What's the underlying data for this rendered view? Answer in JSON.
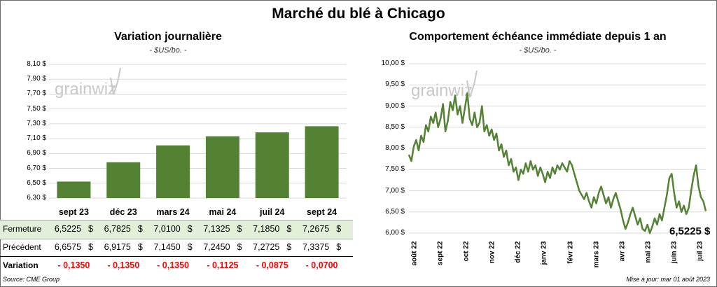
{
  "title": "Marché du blé à Chicago",
  "left_panel": {
    "title": "Variation journalière",
    "subtitle": "- $US/bo. -",
    "watermark": "grainwiz"
  },
  "right_panel": {
    "title": "Comportement échéance immédiate depuis 1 an",
    "subtitle": "- $US/bo. -",
    "watermark": "grainwiz",
    "last_value_label": "6,5225 $"
  },
  "table": {
    "rows": [
      {
        "label": "Fermeture",
        "values": [
          "6,5225",
          "6,7825",
          "7,0100",
          "7,1325",
          "7,1850",
          "7,2675"
        ],
        "unit": "$"
      },
      {
        "label": "Précédent",
        "values": [
          "6,6575",
          "6,9175",
          "7,1450",
          "7,2450",
          "7,2725",
          "7,3375"
        ],
        "unit": "$"
      },
      {
        "label": "Variation",
        "values": [
          "- 0,1350",
          "- 0,1350",
          "- 0,1350",
          "- 0,1125",
          "- 0,0875",
          "- 0,0700"
        ]
      }
    ]
  },
  "footer": {
    "source": "Source: CME Group",
    "updated": "Mise à jour: mar 01 août 2023"
  },
  "colors": {
    "bar": "#548235",
    "line": "#548235",
    "table_highlight": "#e2efd9",
    "negative": "#ff0000",
    "grid": "#d9d9d9"
  },
  "chart_data": [
    {
      "type": "bar",
      "title": "Variation journalière",
      "ylabel": "$US/bo.",
      "categories": [
        "sept 23",
        "déc 23",
        "mars 24",
        "mai 24",
        "juil 24",
        "sept 24"
      ],
      "values": [
        6.5225,
        6.7825,
        7.01,
        7.1325,
        7.185,
        7.2675
      ],
      "ylim": [
        6.3,
        8.1
      ],
      "yticks": [
        "8,10 $",
        "7,90 $",
        "7,70 $",
        "7,50 $",
        "7,30 $",
        "7,10 $",
        "6,90 $",
        "6,70 $",
        "6,50 $",
        "6,30 $"
      ],
      "grid": true
    },
    {
      "type": "line",
      "title": "Comportement échéance immédiate depuis 1 an",
      "ylabel": "$US/bo.",
      "ylim": [
        6.0,
        10.0
      ],
      "yticks": [
        "10,00 $",
        "9,50 $",
        "9,00 $",
        "8,50 $",
        "8,00 $",
        "7,50 $",
        "7,00 $",
        "6,50 $",
        "6,00 $"
      ],
      "xticks": [
        "août 22",
        "sept 22",
        "oct 22",
        "nov 22",
        "déc 22",
        "janv 23",
        "févr 23",
        "mars 23",
        "avr 23",
        "mai 23",
        "juin 23",
        "juil 23"
      ],
      "values": [
        7.85,
        7.7,
        8.05,
        8.2,
        7.95,
        8.3,
        8.15,
        8.55,
        8.4,
        8.75,
        8.6,
        8.85,
        8.5,
        8.7,
        9.05,
        8.4,
        8.65,
        9.1,
        8.9,
        9.25,
        8.8,
        9.0,
        8.6,
        8.95,
        9.3,
        8.7,
        8.55,
        8.85,
        8.5,
        8.6,
        9.0,
        8.4,
        8.55,
        8.3,
        8.45,
        8.2,
        8.35,
        7.95,
        8.1,
        7.8,
        7.95,
        7.6,
        7.75,
        7.45,
        7.55,
        7.25,
        7.5,
        7.4,
        7.65,
        7.45,
        7.7,
        7.5,
        7.6,
        7.35,
        7.55,
        7.4,
        7.2,
        7.45,
        7.3,
        7.55,
        7.4,
        7.6,
        7.5,
        7.65,
        7.55,
        7.45,
        7.7,
        7.6,
        7.4,
        7.2,
        7.0,
        6.9,
        6.8,
        6.95,
        6.75,
        6.6,
        6.85,
        6.7,
        6.95,
        7.1,
        6.9,
        6.7,
        6.85,
        6.6,
        6.8,
        6.95,
        6.75,
        6.55,
        6.3,
        6.1,
        6.25,
        6.45,
        6.6,
        6.4,
        6.2,
        6.35,
        6.1,
        6.05,
        6.2,
        6.0,
        6.15,
        6.35,
        6.2,
        6.45,
        6.3,
        6.6,
        6.9,
        7.3,
        7.4,
        6.95,
        6.6,
        6.75,
        6.5,
        6.65,
        6.45,
        6.6,
        7.0,
        7.35,
        7.6,
        7.1,
        6.85,
        6.75,
        6.5225
      ]
    }
  ]
}
